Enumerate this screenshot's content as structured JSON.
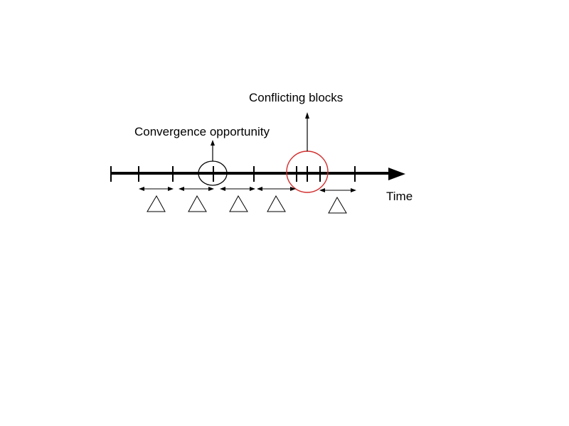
{
  "diagram": {
    "labels": {
      "convergence": "Convergence opportunity",
      "conflicting": "Conflicting blocks",
      "time": "Time"
    },
    "interval_symbol": "delta-triangle",
    "colors": {
      "line": "#000000",
      "conflict_highlight": "#d32f2f",
      "background": "#ffffff"
    }
  }
}
